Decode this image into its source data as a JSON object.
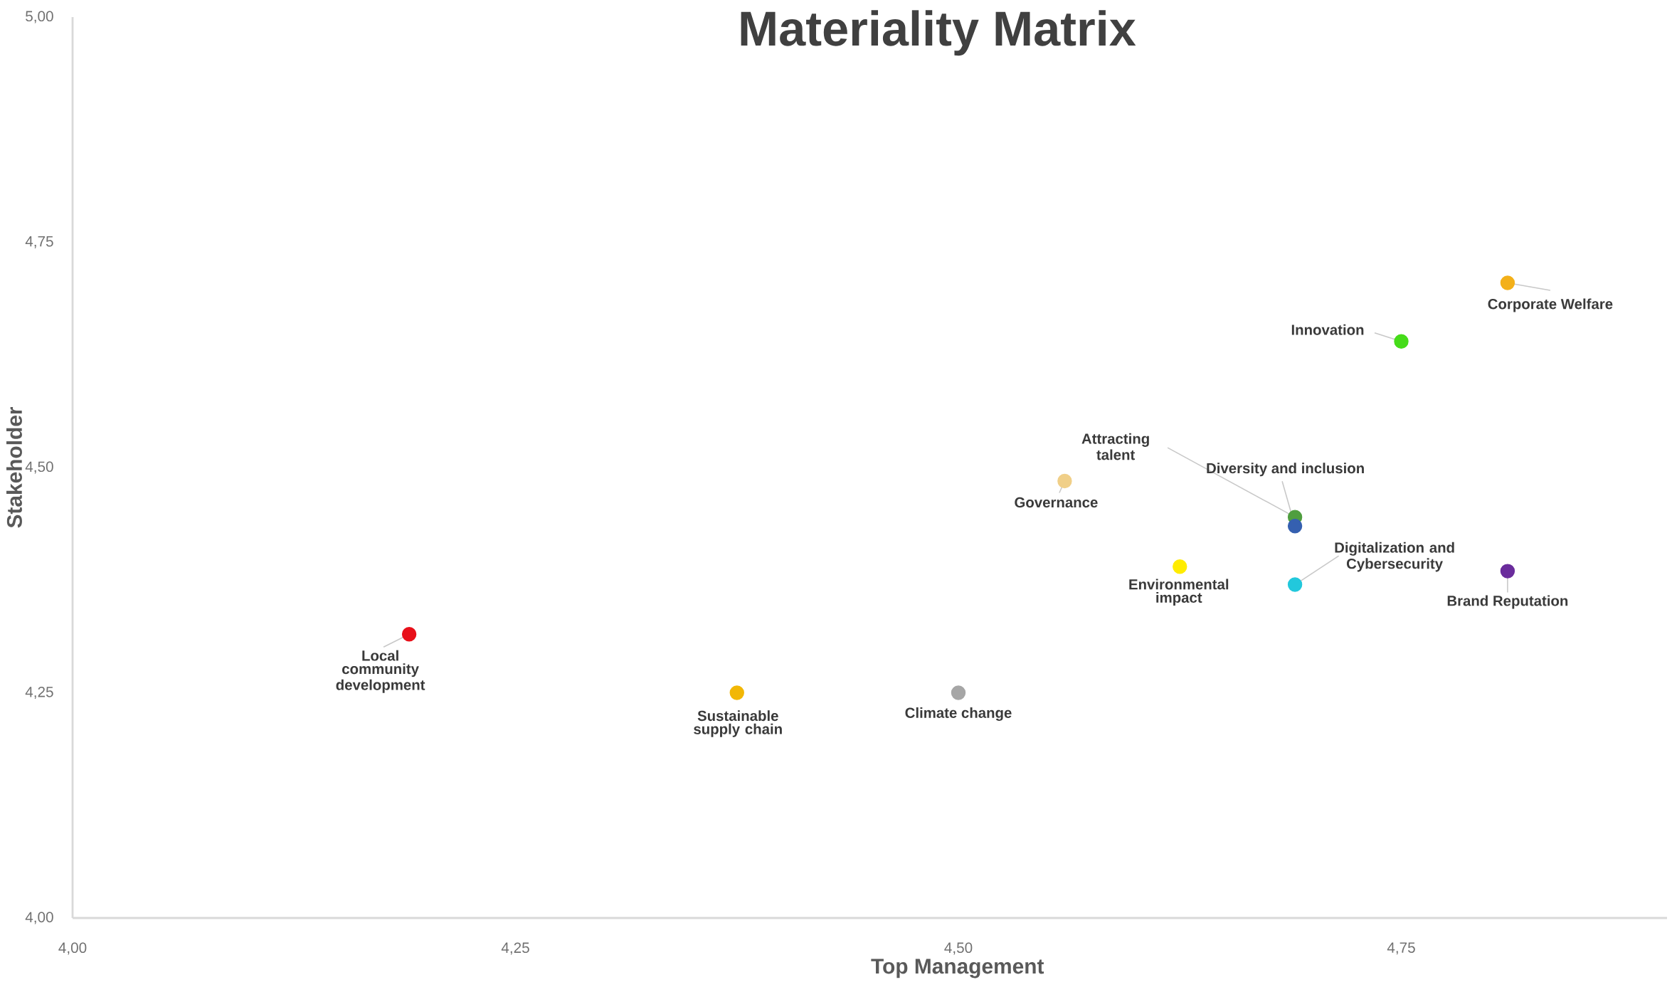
{
  "chart_data": {
    "type": "scatter",
    "title": "Materiality Matrix",
    "xlabel": "Top Management",
    "ylabel": "Stakeholder",
    "xlim": [
      4,
      4.9
    ],
    "ylim": [
      4,
      5
    ],
    "xticks": [
      {
        "value": 4,
        "label": "4,00"
      },
      {
        "value": 4.25,
        "label": "4,25"
      },
      {
        "value": 4.5,
        "label": "4,50"
      },
      {
        "value": 4.75,
        "label": "4,75"
      }
    ],
    "yticks": [
      {
        "value": 4,
        "label": "4,00"
      },
      {
        "value": 4.25,
        "label": "4,25"
      },
      {
        "value": 4.5,
        "label": "4,50"
      },
      {
        "value": 4.75,
        "label": "4,75"
      },
      {
        "value": 5,
        "label": "5,00"
      }
    ],
    "series": [
      {
        "name": "Local community development",
        "color": "#e8101a",
        "x": [
          4.19
        ],
        "values": [
          4.315
        ]
      },
      {
        "name": "Sustainable supply chain",
        "color": "#f2b705",
        "x": [
          4.375
        ],
        "values": [
          4.25
        ]
      },
      {
        "name": "Climate change",
        "color": "#a6a6a6",
        "x": [
          4.5
        ],
        "values": [
          4.25
        ]
      },
      {
        "name": "Governance",
        "color": "#f0cf88",
        "x": [
          4.56
        ],
        "values": [
          4.485
        ]
      },
      {
        "name": "Environmental impact",
        "color": "#ffec00",
        "x": [
          4.625
        ],
        "values": [
          4.39
        ]
      },
      {
        "name": "Attracting talent",
        "color": "#4f9e3f",
        "x": [
          4.69
        ],
        "values": [
          4.445
        ]
      },
      {
        "name": "Diversity and inclusion",
        "color": "#3560b0",
        "x": [
          4.69
        ],
        "values": [
          4.435
        ]
      },
      {
        "name": "Digitalization and Cybersecurity",
        "color": "#22c8dc",
        "x": [
          4.69
        ],
        "values": [
          4.37
        ]
      },
      {
        "name": "Brand Reputation",
        "color": "#6a2c9c",
        "x": [
          4.81
        ],
        "values": [
          4.385
        ]
      },
      {
        "name": "Innovation",
        "color": "#46dc1a",
        "x": [
          4.75
        ],
        "values": [
          4.64
        ]
      },
      {
        "name": "Corporate Welfare",
        "color": "#f3b019",
        "x": [
          4.81
        ],
        "values": [
          4.705
        ]
      }
    ]
  }
}
